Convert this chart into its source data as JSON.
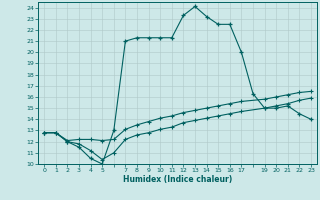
{
  "xlabel": "Humidex (Indice chaleur)",
  "background_color": "#cde8e8",
  "grid_color": "#b0c8c8",
  "line_color": "#006060",
  "xlim": [
    -0.5,
    23.5
  ],
  "ylim": [
    10,
    24.5
  ],
  "xticks": [
    0,
    1,
    2,
    3,
    4,
    5,
    6,
    7,
    8,
    9,
    10,
    11,
    12,
    13,
    14,
    15,
    16,
    17,
    18,
    19,
    20,
    21,
    22,
    23
  ],
  "xtick_labels": [
    "0",
    "1",
    "2",
    "3",
    "4",
    "5",
    "",
    "7",
    "8",
    "9",
    "10",
    "11",
    "12",
    "13",
    "14",
    "15",
    "16",
    "17",
    "",
    "19",
    "20",
    "21",
    "22",
    "23"
  ],
  "yticks": [
    10,
    11,
    12,
    13,
    14,
    15,
    16,
    17,
    18,
    19,
    20,
    21,
    22,
    23,
    24
  ],
  "line1_x": [
    0,
    1,
    2,
    3,
    4,
    5,
    6,
    7,
    8,
    9,
    10,
    11,
    12,
    13,
    14,
    15,
    16,
    17,
    18,
    19,
    20,
    21,
    22,
    23
  ],
  "line1_y": [
    12.8,
    12.8,
    12.0,
    11.5,
    10.5,
    10.0,
    13.0,
    21.0,
    21.3,
    21.3,
    21.3,
    21.3,
    23.3,
    24.1,
    23.2,
    22.5,
    22.5,
    20.0,
    16.3,
    15.0,
    15.0,
    15.2,
    14.5,
    14.0
  ],
  "line2_x": [
    0,
    1,
    2,
    3,
    4,
    5,
    6,
    7,
    8,
    9,
    10,
    11,
    12,
    13,
    14,
    15,
    16,
    17,
    19,
    20,
    21,
    22,
    23
  ],
  "line2_y": [
    12.8,
    12.8,
    12.1,
    12.2,
    12.2,
    12.1,
    12.2,
    13.1,
    13.5,
    13.8,
    14.1,
    14.3,
    14.6,
    14.8,
    15.0,
    15.2,
    15.4,
    15.6,
    15.8,
    16.0,
    16.2,
    16.4,
    16.5
  ],
  "line3_x": [
    0,
    1,
    2,
    3,
    4,
    5,
    6,
    7,
    8,
    9,
    10,
    11,
    12,
    13,
    14,
    15,
    16,
    17,
    19,
    20,
    21,
    22,
    23
  ],
  "line3_y": [
    12.8,
    12.8,
    12.0,
    11.8,
    11.2,
    10.4,
    11.0,
    12.2,
    12.6,
    12.8,
    13.1,
    13.3,
    13.7,
    13.9,
    14.1,
    14.3,
    14.5,
    14.7,
    15.0,
    15.2,
    15.4,
    15.7,
    15.9
  ]
}
